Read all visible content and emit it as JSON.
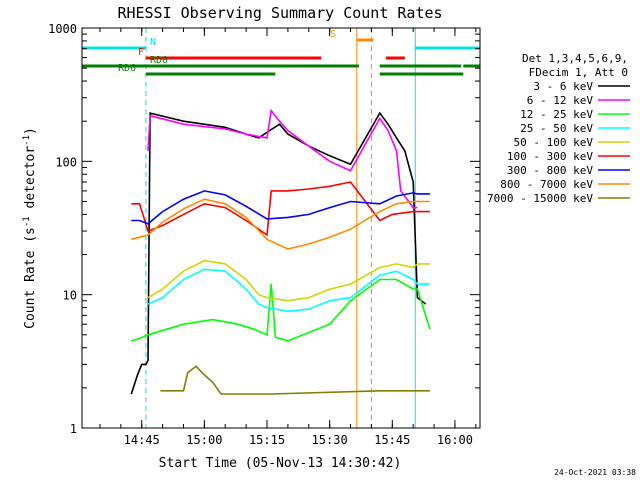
{
  "chart_data": {
    "type": "line",
    "title": "RHESSI Observing Summary Count Rates",
    "xlabel": "Start Time (05-Nov-13 14:30:42)",
    "ylabel": "Count Rate (s^-1 detector^-1)",
    "ylabel_parts": {
      "main": "Count Rate (s",
      "exp1": "-1",
      "mid": " detector",
      "exp2": "-1",
      "end": ")"
    },
    "yscale": "log",
    "ylim": [
      1,
      1000
    ],
    "xlim": [
      "14:30:42",
      "16:06:00"
    ],
    "x_ticks": [
      "14:45",
      "15:00",
      "15:15",
      "15:30",
      "15:45",
      "16:00"
    ],
    "y_ticks": [
      "1",
      "10",
      "100",
      "1000"
    ],
    "legend_header": [
      "Det 1,3,4,5,6,9,",
      "FDecim 1, Att 0"
    ],
    "legend_placement": "right",
    "timestamp": "24-Oct-2021 03:38",
    "flags": [
      {
        "label": "N",
        "color": "#00e5e5",
        "segments": [
          [
            "14:30:42",
            "14:46:00"
          ],
          [
            "15:50:30",
            "16:06:00"
          ]
        ]
      },
      {
        "label": "F",
        "color": "#ff0000",
        "segments": [
          [
            "14:46:00",
            "15:28:00"
          ],
          [
            "15:43:30",
            "15:48:00"
          ]
        ]
      },
      {
        "label": "S",
        "color": "#ff8c00",
        "segments": [
          [
            "15:36:30",
            "15:40:30"
          ]
        ]
      },
      {
        "label": "RD0",
        "color": "#008000",
        "segments": [
          [
            "14:30:42",
            "15:37:00"
          ],
          [
            "15:42:00",
            "16:01:30"
          ],
          [
            "16:02:00",
            "16:06:00"
          ]
        ]
      },
      {
        "label": "RD6",
        "color": "#008000",
        "segments": [
          [
            "14:46:00",
            "15:17:00"
          ],
          [
            "15:42:00",
            "16:02:00"
          ]
        ]
      }
    ],
    "vlines": [
      {
        "time": "14:46:00",
        "color": "#00e5e5",
        "style": "dashed"
      },
      {
        "time": "15:36:30",
        "color": "#ff8c00",
        "style": "solid"
      },
      {
        "time": "15:40:00",
        "color": "#ff8c00",
        "style": "dashed"
      },
      {
        "time": "15:50:30",
        "color": "#00e5e5",
        "style": "solid"
      },
      {
        "time": "16:06:00",
        "color": "#00e5e5",
        "style": "dashed"
      }
    ],
    "series": [
      {
        "name": "3 - 6 keV",
        "color": "#000000",
        "x": [
          "14:42:30",
          "14:44:00",
          "14:45:00",
          "14:46:00",
          "14:46:30",
          "14:47:00",
          "14:55:00",
          "15:05:00",
          "15:10:00",
          "15:13:00",
          "15:15:00",
          "15:18:00",
          "15:20:00",
          "15:25:00",
          "15:30:00",
          "15:35:00",
          "15:42:00",
          "15:44:00",
          "15:46:00",
          "15:48:00",
          "15:50:00",
          "15:51:00",
          "15:53:00"
        ],
        "values": [
          1.8,
          2.5,
          3.0,
          3.0,
          3.2,
          230,
          200,
          180,
          160,
          150,
          165,
          190,
          160,
          130,
          110,
          95,
          230,
          190,
          150,
          120,
          70,
          9.5,
          8.5
        ]
      },
      {
        "name": "6 - 12 keV",
        "color": "#ff00ff",
        "x": [
          "14:46:30",
          "14:47:00",
          "14:55:00",
          "15:05:00",
          "15:10:00",
          "15:15:00",
          "15:16:00",
          "15:18:00",
          "15:20:00",
          "15:25:00",
          "15:30:00",
          "15:35:00",
          "15:42:00",
          "15:44:00",
          "15:46:00",
          "15:47:00",
          "15:50:00",
          "15:51:00"
        ],
        "values": [
          120,
          220,
          190,
          175,
          160,
          150,
          240,
          200,
          170,
          130,
          100,
          85,
          210,
          170,
          120,
          60,
          45,
          45
        ]
      },
      {
        "name": "12 - 25 keV",
        "color": "#00ff00",
        "x": [
          "14:42:30",
          "14:44:30",
          "14:46:30",
          "14:55:00",
          "15:02:00",
          "15:08:00",
          "15:12:00",
          "15:15:00",
          "15:16:00",
          "15:17:00",
          "15:20:00",
          "15:25:00",
          "15:30:00",
          "15:35:00",
          "15:42:00",
          "15:46:00",
          "15:50:00",
          "15:51:00",
          "15:54:00"
        ],
        "values": [
          4.5,
          4.7,
          5.0,
          6.0,
          6.5,
          6.0,
          5.5,
          5.0,
          12,
          4.8,
          4.5,
          5.2,
          6.0,
          9.0,
          13,
          13,
          11,
          11,
          5.5
        ]
      },
      {
        "name": "25 - 50 keV",
        "color": "#00ffff",
        "x": [
          "14:46:30",
          "14:50:00",
          "14:55:00",
          "15:00:00",
          "15:05:00",
          "15:10:00",
          "15:13:00",
          "15:15:00",
          "15:20:00",
          "15:25:00",
          "15:30:00",
          "15:35:00",
          "15:42:00",
          "15:46:00",
          "15:48:00",
          "15:50:00",
          "15:51:00",
          "15:54:00"
        ],
        "values": [
          8.5,
          9.5,
          13,
          15.5,
          15,
          11,
          8.5,
          8.0,
          7.5,
          7.8,
          9.0,
          9.5,
          14,
          15,
          14,
          13,
          12,
          12
        ]
      },
      {
        "name": "50 - 100 keV",
        "color": "#d4d400",
        "x": [
          "14:46:30",
          "14:50:00",
          "14:55:00",
          "15:00:00",
          "15:05:00",
          "15:10:00",
          "15:13:00",
          "15:15:00",
          "15:20:00",
          "15:25:00",
          "15:30:00",
          "15:35:00",
          "15:42:00",
          "15:46:00",
          "15:50:00",
          "15:51:00",
          "15:54:00"
        ],
        "values": [
          9.5,
          11,
          15,
          18,
          17,
          13,
          10,
          9.5,
          9.0,
          9.5,
          11,
          12,
          16,
          17,
          16,
          17,
          17
        ]
      },
      {
        "name": "100 - 300 keV",
        "color": "#ff0000",
        "x": [
          "14:42:30",
          "14:44:30",
          "14:46:30",
          "14:50:00",
          "14:55:00",
          "15:00:00",
          "15:05:00",
          "15:10:00",
          "15:15:00",
          "15:16:00",
          "15:20:00",
          "15:25:00",
          "15:30:00",
          "15:35:00",
          "15:42:00",
          "15:45:00",
          "15:50:00",
          "15:51:00",
          "15:54:00"
        ],
        "values": [
          48,
          48,
          30,
          33,
          40,
          48,
          45,
          36,
          28,
          60,
          60,
          62,
          65,
          70,
          36,
          40,
          42,
          42,
          42
        ]
      },
      {
        "name": "300 - 800 keV",
        "color": "#0000ff",
        "x": [
          "14:42:30",
          "14:44:30",
          "14:46:30",
          "14:50:00",
          "14:55:00",
          "15:00:00",
          "15:05:00",
          "15:10:00",
          "15:15:00",
          "15:20:00",
          "15:25:00",
          "15:30:00",
          "15:35:00",
          "15:42:00",
          "15:46:00",
          "15:50:00",
          "15:51:00",
          "15:54:00"
        ],
        "values": [
          36,
          36,
          34,
          42,
          52,
          60,
          56,
          46,
          37,
          38,
          40,
          45,
          50,
          48,
          55,
          58,
          57,
          57
        ]
      },
      {
        "name": "800 - 7000 keV",
        "color": "#ff8c00",
        "x": [
          "14:42:30",
          "14:44:30",
          "14:46:30",
          "14:50:00",
          "14:55:00",
          "15:00:00",
          "15:05:00",
          "15:10:00",
          "15:15:00",
          "15:20:00",
          "15:25:00",
          "15:30:00",
          "15:35:00",
          "15:42:00",
          "15:46:00",
          "15:50:00",
          "15:51:00",
          "15:54:00"
        ],
        "values": [
          26,
          27,
          28,
          35,
          44,
          52,
          48,
          38,
          26,
          22,
          24,
          27,
          31,
          42,
          48,
          50,
          50,
          50
        ]
      },
      {
        "name": "7000 - 15000 keV",
        "color": "#808000",
        "x": [
          "14:49:30",
          "14:51:00",
          "14:53:00",
          "14:55:00",
          "14:56:00",
          "14:58:00",
          "15:00:00",
          "15:02:00",
          "15:04:00",
          "15:06:00",
          "15:08:00",
          "15:10:00",
          "15:12:00",
          "15:14:00",
          "15:16:00",
          "15:42:00",
          "15:44:00",
          "15:46:00",
          "15:48:00",
          "15:50:00",
          "15:52:00",
          "15:54:00"
        ],
        "values": [
          1.9,
          1.9,
          1.9,
          1.9,
          2.6,
          2.9,
          2.5,
          2.2,
          1.8,
          1.8,
          1.8,
          1.8,
          1.8,
          1.8,
          1.8,
          1.9,
          1.9,
          1.9,
          1.9,
          1.9,
          1.9,
          1.9
        ]
      }
    ]
  }
}
